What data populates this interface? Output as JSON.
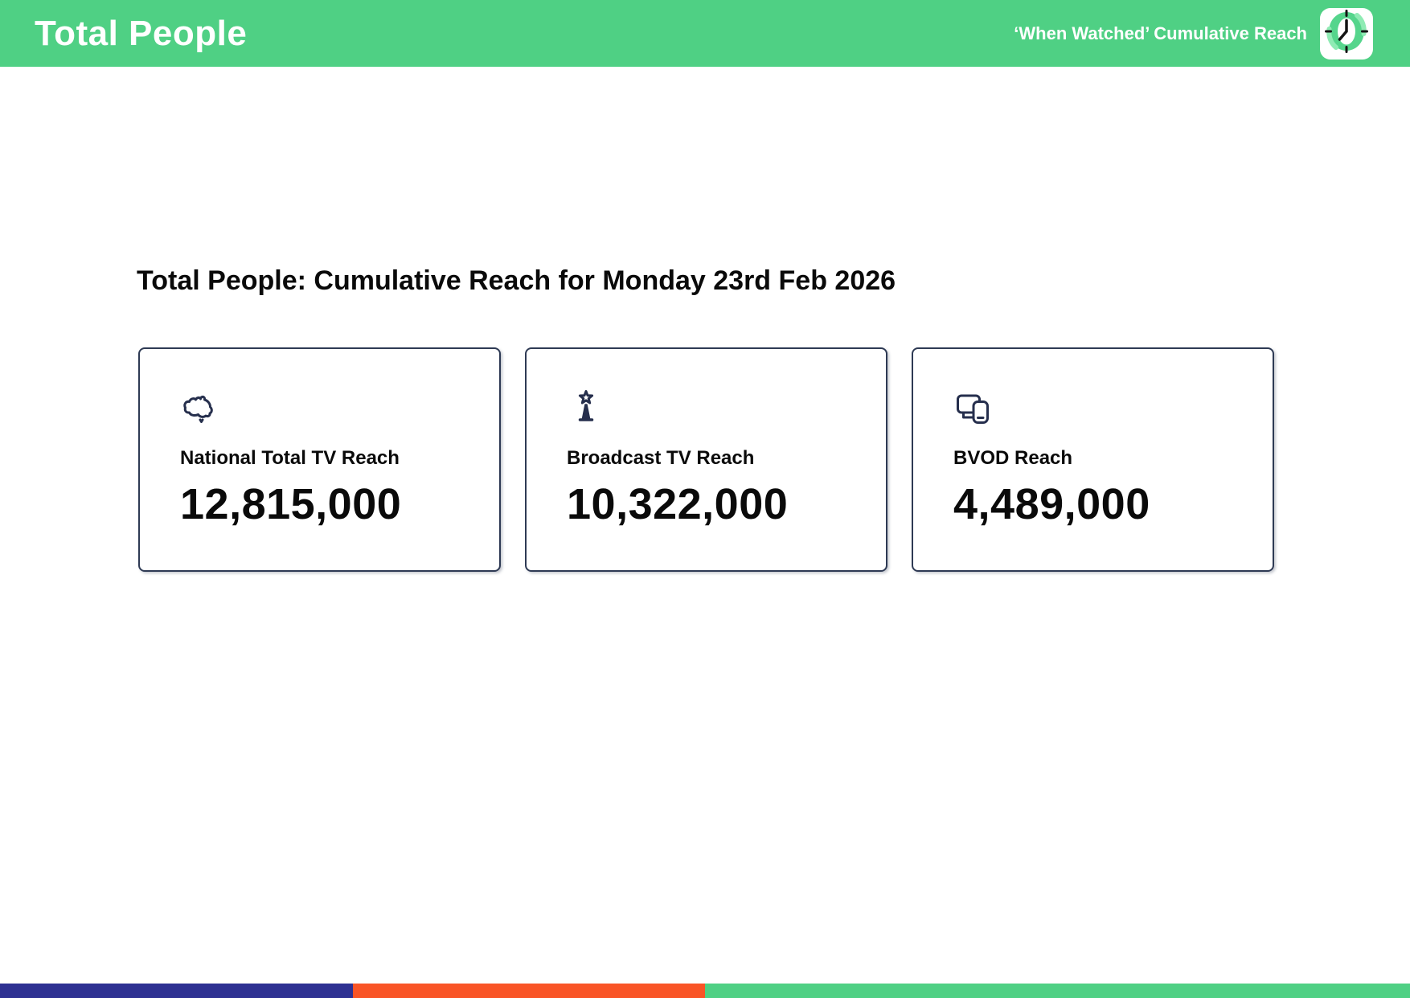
{
  "header": {
    "title": "Total People",
    "subtitle": "‘When Watched’ Cumulative Reach",
    "logo_icon": "clock-icon",
    "background_color": "#4fd084"
  },
  "main": {
    "heading": "Total People: Cumulative Reach for Monday 23rd Feb 2026",
    "cards": [
      {
        "icon": "australia-map-icon",
        "label": "National Total TV Reach",
        "value": "12,815,000"
      },
      {
        "icon": "broadcast-tower-icon",
        "label": "Broadcast TV Reach",
        "value": "10,322,000"
      },
      {
        "icon": "devices-icon",
        "label": "BVOD Reach",
        "value": "4,489,000"
      }
    ],
    "icon_color": "#262f4d"
  },
  "footer": {
    "segments": [
      {
        "name": "navy",
        "color": "#2e3192",
        "width_pct": 25
      },
      {
        "name": "orange",
        "color": "#f95426",
        "width_pct": 25
      },
      {
        "name": "green",
        "color": "#4fd084",
        "width_pct": 50
      }
    ]
  }
}
